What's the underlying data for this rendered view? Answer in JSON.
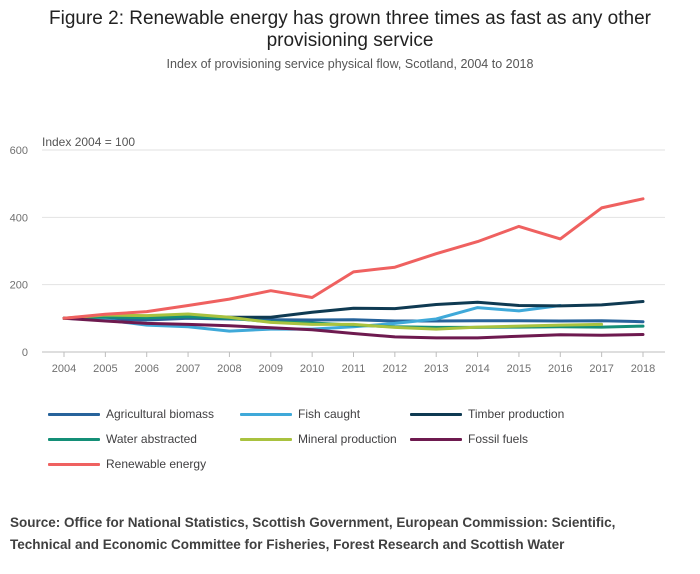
{
  "chart_data": {
    "type": "line",
    "title": [
      "Figure 2: Renewable energy has grown three times as fast as any other",
      "provisioning service"
    ],
    "subtitle": "Index of provisioning service physical flow, Scotland, 2004 to 2018",
    "ylabel": "Index 2004 = 100",
    "xlabel": "",
    "ylim": [
      0,
      600
    ],
    "yticks": [
      0,
      200,
      400,
      600
    ],
    "grid": true,
    "legend_position": "bottom",
    "x": [
      "2004",
      "2005",
      "2006",
      "2007",
      "2008",
      "2009",
      "2010",
      "2011",
      "2012",
      "2013",
      "2014",
      "2015",
      "2016",
      "2017",
      "2018"
    ],
    "series": [
      {
        "name": "Agricultural biomass",
        "color": "#27639b",
        "values": [
          100,
          97,
          95,
          100,
          98,
          96,
          95,
          96,
          92,
          92,
          93,
          93,
          92,
          93,
          90
        ]
      },
      {
        "name": "Fish caught",
        "color": "#3fa9d9",
        "values": [
          100,
          95,
          80,
          75,
          62,
          68,
          68,
          75,
          85,
          98,
          132,
          122,
          138,
          null,
          null
        ]
      },
      {
        "name": "Timber production",
        "color": "#0f3a52",
        "values": [
          100,
          105,
          105,
          108,
          103,
          103,
          118,
          130,
          129,
          141,
          148,
          138,
          137,
          140,
          150
        ]
      },
      {
        "name": "Water abstracted",
        "color": "#148f77",
        "values": [
          100,
          104,
          102,
          105,
          100,
          90,
          86,
          80,
          75,
          73,
          73,
          74,
          75,
          74,
          77
        ]
      },
      {
        "name": "Mineral production",
        "color": "#a9c23f",
        "values": [
          100,
          110,
          108,
          113,
          103,
          88,
          82,
          82,
          73,
          68,
          74,
          77,
          80,
          82,
          null
        ]
      },
      {
        "name": "Fossil fuels",
        "color": "#6e1a4f",
        "values": [
          100,
          92,
          85,
          82,
          78,
          72,
          66,
          55,
          45,
          42,
          42,
          47,
          51,
          50,
          52
        ]
      },
      {
        "name": "Renewable energy",
        "color": "#ef6160",
        "values": [
          100,
          112,
          120,
          138,
          157,
          182,
          162,
          238,
          252,
          292,
          328,
          373,
          336,
          428,
          455
        ]
      }
    ]
  },
  "source": [
    "Source: Office for National Statistics, Scottish Government, European Commission: Scientific,",
    "Technical and Economic Committee for Fisheries, Forest Research and Scottish Water"
  ]
}
